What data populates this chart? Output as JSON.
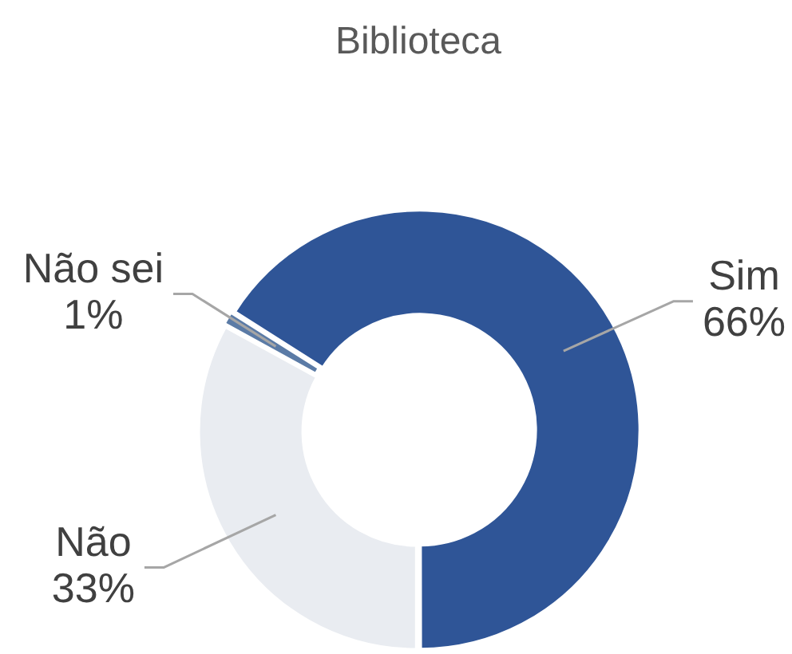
{
  "chart_data": {
    "type": "donut",
    "title": "Biblioteca",
    "categories": [
      "Não",
      "Não sei",
      "Sim"
    ],
    "values": [
      33,
      1,
      66
    ],
    "value_labels": [
      "33%",
      "1%",
      "66%"
    ],
    "colors": [
      "#e9ecf1",
      "#5b7ba6",
      "#2f5597"
    ]
  }
}
